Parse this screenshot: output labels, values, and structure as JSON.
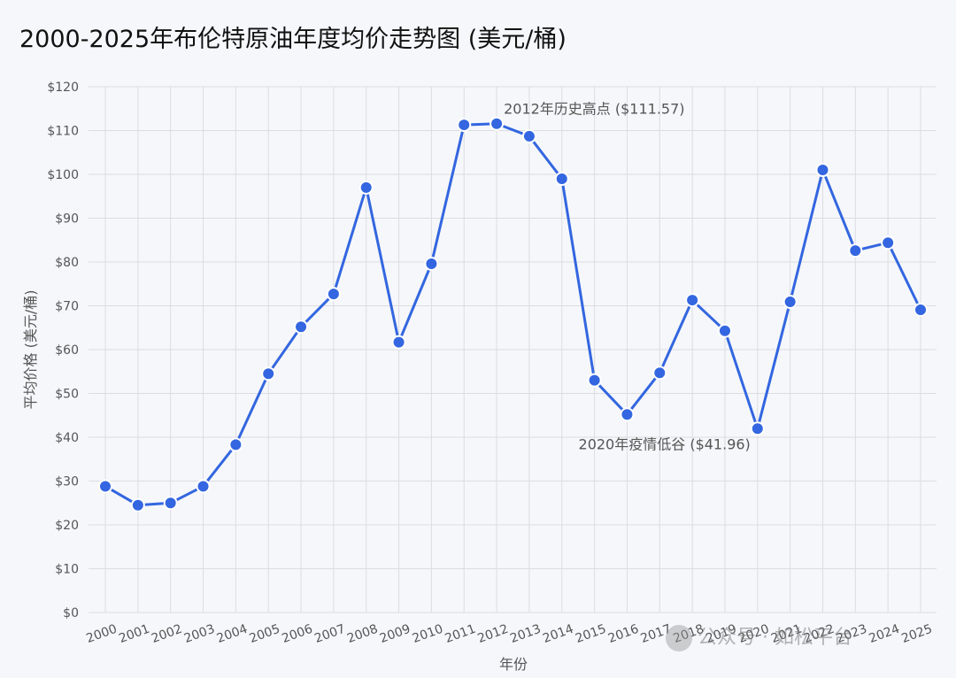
{
  "title": "2000-2025年布伦特原油年度均价走势图 (美元/桶)",
  "watermark": "公众号 · 如松平台",
  "colors": {
    "line": "#3366e0",
    "grid": "#dcdde3",
    "axis_text": "#555555",
    "background": "#f5f7fa"
  },
  "chart_data": {
    "type": "line",
    "title": "2000-2025年布伦特原油年度均价走势图 (美元/桶)",
    "xlabel": "年份",
    "ylabel": "平均价格 (美元/桶)",
    "ylim": [
      0,
      120
    ],
    "yticks": [
      "$0",
      "$10",
      "$20",
      "$30",
      "$40",
      "$50",
      "$60",
      "$70",
      "$80",
      "$90",
      "$100",
      "$110",
      "$120"
    ],
    "grid": true,
    "categories": [
      "2000",
      "2001",
      "2002",
      "2003",
      "2004",
      "2005",
      "2006",
      "2007",
      "2008",
      "2009",
      "2010",
      "2011",
      "2012",
      "2013",
      "2014",
      "2015",
      "2016",
      "2017",
      "2018",
      "2019",
      "2020",
      "2021",
      "2022",
      "2023",
      "2024",
      "2025"
    ],
    "series": [
      {
        "values": [
          28.8,
          24.5,
          25.0,
          28.8,
          38.3,
          54.5,
          65.2,
          72.7,
          97.0,
          61.7,
          79.6,
          111.3,
          111.57,
          108.7,
          99.0,
          53.0,
          45.2,
          54.7,
          71.3,
          64.3,
          41.96,
          70.9,
          101.0,
          82.6,
          84.4,
          69.1
        ]
      }
    ],
    "annotations": [
      {
        "text": "2012年历史高点 ($111.57)",
        "category": "2012"
      },
      {
        "text": "2020年疫情低谷 ($41.96)",
        "category": "2020"
      }
    ]
  }
}
